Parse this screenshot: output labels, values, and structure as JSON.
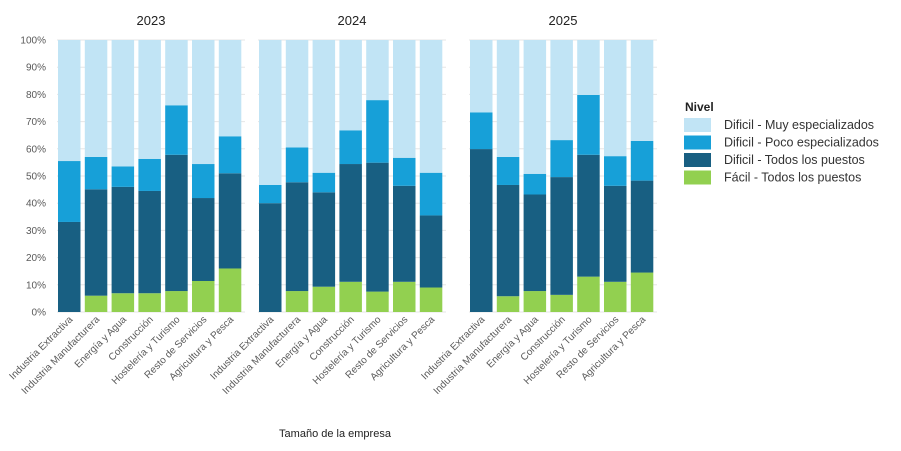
{
  "chart_data": {
    "type": "bar",
    "stacked": true,
    "percent": true,
    "xlabel": "Tamaño de la empresa",
    "ylabel": "",
    "ylim": [
      0,
      100
    ],
    "yticks": [
      "0%",
      "10%",
      "20%",
      "30%",
      "40%",
      "50%",
      "60%",
      "70%",
      "80%",
      "90%",
      "100%"
    ],
    "grid": true,
    "legend": {
      "title": "Nivel",
      "placement": "right"
    },
    "categories": [
      "Industria Extractiva",
      "Industria Manufacturera",
      "Energía y Agua",
      "Construcción",
      "Hostelería y Turismo",
      "Resto de Servicios",
      "Agricultura y Pesca"
    ],
    "series_meta": [
      {
        "name": "Fácil - Todos los puestos",
        "color": "#92d050"
      },
      {
        "name": "Dificil - Todos los puestos",
        "color": "#185f82"
      },
      {
        "name": "Dificil - Poco especializados",
        "color": "#17a0d8"
      },
      {
        "name": "Dificil - Muy especializados",
        "color": "#c1e4f5"
      }
    ],
    "panels": [
      {
        "title": "2023",
        "series": [
          {
            "name": "Fácil - Todos los puestos",
            "values": [
              0,
              6.0,
              6.9,
              6.9,
              7.7,
              11.4,
              16.0
            ]
          },
          {
            "name": "Dificil - Todos los puestos",
            "values": [
              33.1,
              39.1,
              39.1,
              37.6,
              50.1,
              30.5,
              35.0
            ]
          },
          {
            "name": "Dificil - Poco especializados",
            "values": [
              22.4,
              11.9,
              7.5,
              11.8,
              18.2,
              12.5,
              13.6
            ]
          },
          {
            "name": "Dificil - Muy especializados",
            "values": [
              44.5,
              43.0,
              46.5,
              43.7,
              24.0,
              45.6,
              35.4
            ]
          }
        ]
      },
      {
        "title": "2024",
        "series": [
          {
            "name": "Fácil - Todos los puestos",
            "values": [
              0,
              7.7,
              9.3,
              11.1,
              7.5,
              11.1,
              9.0
            ]
          },
          {
            "name": "Dificil - Todos los puestos",
            "values": [
              40.0,
              40.0,
              34.7,
              43.3,
              47.4,
              35.3,
              26.5
            ]
          },
          {
            "name": "Dificil - Poco especializados",
            "values": [
              6.7,
              12.8,
              7.2,
              12.4,
              23.0,
              10.3,
              15.7
            ]
          },
          {
            "name": "Dificil - Muy especializados",
            "values": [
              53.3,
              39.5,
              48.8,
              33.2,
              22.1,
              43.3,
              48.8
            ]
          }
        ]
      },
      {
        "title": "2025",
        "series": [
          {
            "name": "Fácil - Todos los puestos",
            "values": [
              0,
              5.8,
              7.7,
              6.3,
              13.0,
              11.1,
              14.5
            ]
          },
          {
            "name": "Dificil - Todos los puestos",
            "values": [
              59.9,
              40.9,
              35.5,
              43.3,
              44.8,
              35.3,
              33.8
            ]
          },
          {
            "name": "Dificil - Poco especializados",
            "values": [
              13.5,
              10.3,
              7.6,
              13.6,
              22.0,
              10.9,
              14.6
            ]
          },
          {
            "name": "Dificil - Muy especializados",
            "values": [
              26.6,
              43.0,
              49.2,
              36.8,
              20.2,
              42.7,
              37.1
            ]
          }
        ]
      }
    ],
    "legend_order": [
      "Dificil - Muy especializados",
      "Dificil - Poco especializados",
      "Dificil - Todos los puestos",
      "Fácil - Todos los puestos"
    ]
  }
}
